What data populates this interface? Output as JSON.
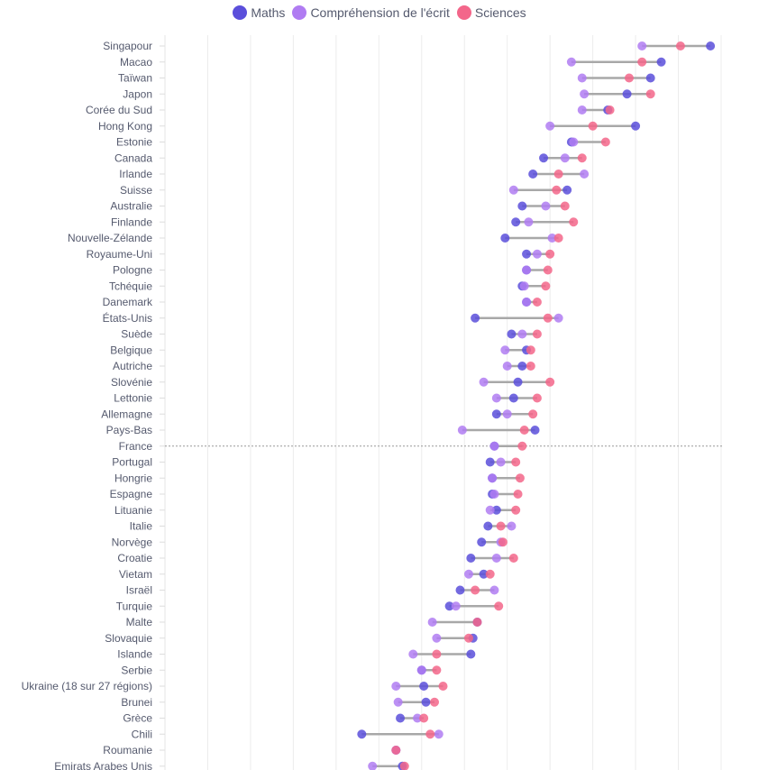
{
  "chart_data": {
    "type": "dumbbell",
    "title": "",
    "xlabel": "",
    "ylabel": "",
    "xlim": [
      320,
      580
    ],
    "grid": true,
    "grid_step": 20,
    "legend_position": "top-center",
    "highlight_category": "France",
    "series_colors": {
      "Maths": "#5b4fdb",
      "Compréhension de l'écrit": "#b07cf2",
      "Sciences": "#f3668a"
    },
    "legend": [
      "Maths",
      "Compréhension de l'écrit",
      "Sciences"
    ],
    "categories": [
      "Singapour",
      "Macao",
      "Taïwan",
      "Japon",
      "Corée du Sud",
      "Hong Kong",
      "Estonie",
      "Canada",
      "Irlande",
      "Suisse",
      "Australie",
      "Finlande",
      "Nouvelle-Zélande",
      "Royaume-Uni",
      "Pologne",
      "Tchéquie",
      "Danemark",
      "États-Unis",
      "Suède",
      "Belgique",
      "Autriche",
      "Slovénie",
      "Lettonie",
      "Allemagne",
      "Pays-Bas",
      "France",
      "Portugal",
      "Hongrie",
      "Espagne",
      "Lituanie",
      "Italie",
      "Norvège",
      "Croatie",
      "Vietam",
      "Israël",
      "Turquie",
      "Malte",
      "Slovaquie",
      "Islande",
      "Serbie",
      "Ukraine (18 sur 27 régions)",
      "Brunei",
      "Grèce",
      "Chili",
      "Roumanie",
      "Emirats Arabes Unis"
    ],
    "series": [
      {
        "name": "Maths",
        "values": [
          575,
          552,
          547,
          536,
          527,
          540,
          510,
          497,
          492,
          508,
          487,
          484,
          479,
          489,
          489,
          487,
          489,
          465,
          482,
          489,
          487,
          485,
          483,
          475,
          493,
          474,
          472,
          473,
          473,
          475,
          471,
          468,
          463,
          469,
          458,
          453,
          466,
          464,
          463,
          440,
          441,
          442,
          430,
          412,
          428,
          431
        ]
      },
      {
        "name": "Compréhension de l'écrit",
        "values": [
          543,
          510,
          515,
          516,
          515,
          500,
          511,
          507,
          516,
          483,
          498,
          490,
          501,
          494,
          489,
          488,
          489,
          504,
          487,
          479,
          480,
          469,
          475,
          480,
          459,
          474,
          477,
          473,
          474,
          472,
          482,
          477,
          475,
          462,
          474,
          456,
          445,
          447,
          436,
          440,
          428,
          429,
          438,
          448,
          428,
          417
        ]
      },
      {
        "name": "Sciences",
        "values": [
          561,
          543,
          537,
          547,
          528,
          520,
          526,
          515,
          504,
          503,
          507,
          511,
          504,
          500,
          499,
          498,
          494,
          499,
          494,
          491,
          491,
          500,
          494,
          492,
          488,
          487,
          484,
          486,
          485,
          484,
          477,
          478,
          483,
          472,
          465,
          476,
          466,
          462,
          447,
          447,
          450,
          446,
          441,
          444,
          428,
          432
        ]
      }
    ]
  },
  "legend": {
    "items": [
      {
        "label": "Maths",
        "color": "#5b4fdb"
      },
      {
        "label": "Compréhension de l'écrit",
        "color": "#b07cf2"
      },
      {
        "label": "Sciences",
        "color": "#f3668a"
      }
    ]
  }
}
